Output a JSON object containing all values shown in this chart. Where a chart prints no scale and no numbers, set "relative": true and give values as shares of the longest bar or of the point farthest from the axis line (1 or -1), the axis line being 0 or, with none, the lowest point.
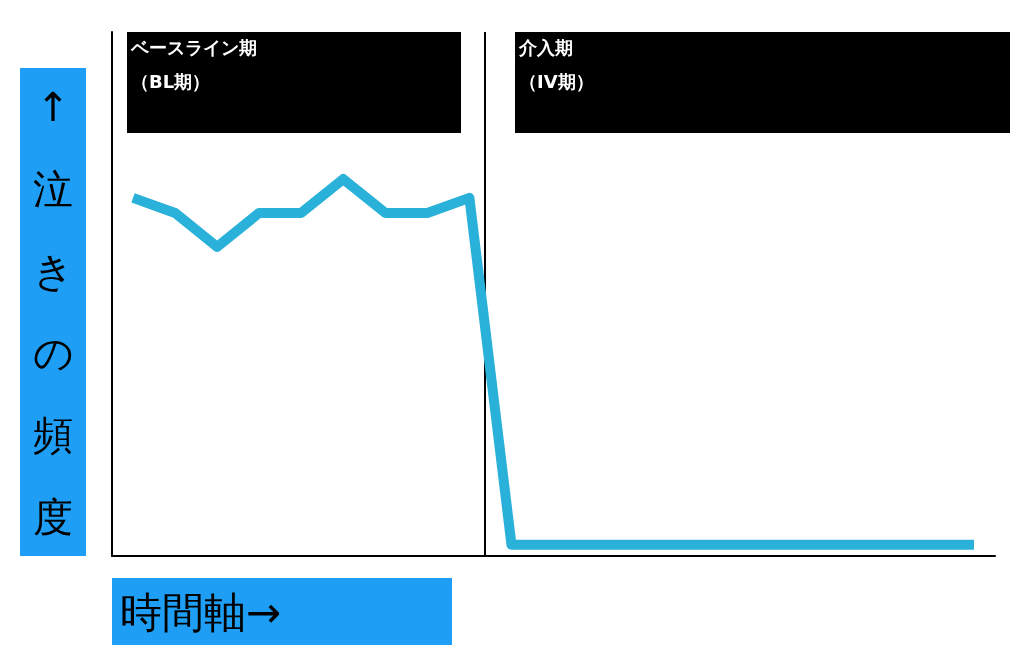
{
  "chart_data": {
    "type": "line",
    "relative": true,
    "xlabel": "時間軸→",
    "ylabel": "↑泣きの頻度",
    "categories": [
      null,
      null,
      null,
      null,
      null,
      null,
      null,
      null,
      null,
      null,
      null,
      null,
      null,
      null,
      null,
      null,
      null,
      null,
      null,
      null,
      null
    ],
    "series": [
      {
        "color": "#29b1d9",
        "values": [
          0.95,
          0.91,
          0.82,
          0.91,
          0.91,
          1,
          0.91,
          0.91,
          0.95,
          0.03,
          0.03,
          0.03,
          0.03,
          0.03,
          0.03,
          0.03,
          0.03,
          0.03,
          0.03,
          0.03,
          0.03
        ]
      }
    ],
    "annotations": [
      "ベースライン期",
      "（BL期）",
      "介入期",
      "（IV期）"
    ],
    "grid": false,
    "marker": "none",
    "line_style": "solid"
  }
}
